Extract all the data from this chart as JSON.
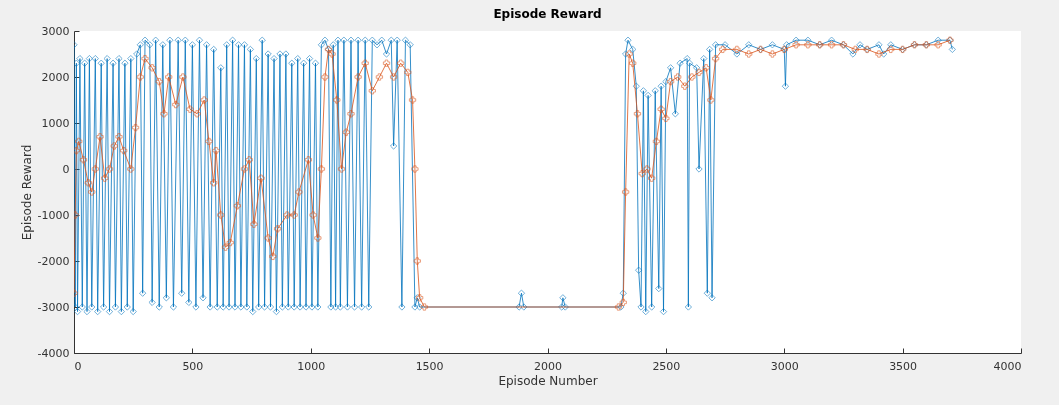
{
  "chart_data": {
    "type": "line",
    "title": "Episode Reward",
    "xlabel": "Episode Number",
    "ylabel": "Episode Reward",
    "xlim": [
      0,
      4000
    ],
    "xticks": [
      0,
      500,
      1000,
      1500,
      2000,
      2500,
      3000,
      3500,
      4000
    ],
    "ylim": [
      -4000,
      3000
    ],
    "yticks": [
      -4000,
      -3000,
      -2000,
      -1000,
      0,
      1000,
      2000,
      3000
    ],
    "grid": false,
    "series": [
      {
        "color": "#0072bd",
        "marker": "diamond",
        "x": [
          0,
          5,
          10,
          15,
          25,
          35,
          45,
          55,
          65,
          75,
          90,
          100,
          115,
          125,
          140,
          150,
          165,
          175,
          190,
          200,
          215,
          225,
          240,
          250,
          265,
          280,
          290,
          300,
          320,
          330,
          345,
          360,
          375,
          390,
          405,
          420,
          440,
          455,
          470,
          485,
          500,
          515,
          530,
          545,
          560,
          575,
          590,
          605,
          620,
          630,
          645,
          655,
          670,
          680,
          695,
          705,
          720,
          730,
          745,
          755,
          770,
          780,
          795,
          805,
          820,
          830,
          845,
          855,
          870,
          880,
          895,
          905,
          920,
          930,
          945,
          955,
          970,
          980,
          995,
          1005,
          1020,
          1030,
          1045,
          1060,
          1075,
          1085,
          1095,
          1105,
          1115,
          1125,
          1140,
          1155,
          1170,
          1185,
          1200,
          1215,
          1230,
          1245,
          1260,
          1280,
          1300,
          1320,
          1340,
          1350,
          1365,
          1385,
          1400,
          1420,
          1440,
          1450,
          1460,
          1880,
          1890,
          1900,
          2060,
          2065,
          2075,
          2310,
          2320,
          2330,
          2340,
          2360,
          2375,
          2385,
          2395,
          2405,
          2415,
          2425,
          2440,
          2455,
          2470,
          2480,
          2490,
          2500,
          2520,
          2540,
          2560,
          2590,
          2595,
          2600,
          2630,
          2640,
          2660,
          2675,
          2685,
          2695,
          2710,
          2750,
          2800,
          2850,
          2900,
          2950,
          3000,
          3005,
          3010,
          3050,
          3100,
          3150,
          3200,
          3250,
          3290,
          3320,
          3350,
          3400,
          3420,
          3450,
          3500,
          3550,
          3600,
          3650,
          3700,
          3710
        ],
        "values": [
          2700,
          -3000,
          2300,
          -3100,
          2400,
          -3000,
          2300,
          -3100,
          2400,
          -3000,
          2400,
          -3100,
          2300,
          -3000,
          2400,
          -3100,
          2300,
          -3000,
          2400,
          -3100,
          2300,
          -3000,
          2400,
          -3100,
          2500,
          2700,
          -2700,
          2800,
          2700,
          -2900,
          2800,
          -3000,
          2700,
          -2800,
          2800,
          -3000,
          2800,
          -2700,
          2800,
          -2900,
          2700,
          -3000,
          2800,
          -2800,
          2700,
          -3000,
          2600,
          -3000,
          2200,
          -3000,
          2700,
          -3000,
          2800,
          -3000,
          2700,
          -3000,
          2700,
          -3000,
          2600,
          -3100,
          2400,
          -3000,
          2800,
          -3000,
          2500,
          -3000,
          2400,
          -3100,
          2500,
          -3000,
          2500,
          -3000,
          2300,
          -3000,
          2400,
          -3000,
          2300,
          -3000,
          2400,
          -3000,
          2300,
          -3000,
          2700,
          2800,
          2600,
          -3000,
          2700,
          -3000,
          2800,
          -3000,
          2800,
          -3000,
          2800,
          -3000,
          2800,
          -3000,
          2800,
          -3000,
          2800,
          2700,
          2800,
          2500,
          2800,
          500,
          2800,
          -3000,
          2800,
          2700,
          -3000,
          -2800,
          -3000,
          -3000,
          -2700,
          -3000,
          -3000,
          -2800,
          -3000,
          -3000,
          -2700,
          2500,
          2800,
          2600,
          1800,
          -2200,
          -3000,
          1700,
          -3100,
          1600,
          -3000,
          1700,
          -2600,
          1800,
          -3100,
          1900,
          2200,
          1200,
          2300,
          2400,
          -3000,
          2300,
          2200,
          0,
          2400,
          -2700,
          2600,
          -2800,
          2700,
          2700,
          2500,
          2700,
          2600,
          2700,
          2600,
          1800,
          2700,
          2800,
          2800,
          2700,
          2800,
          2700,
          2500,
          2700,
          2600,
          2700,
          2500,
          2700,
          2600,
          2700,
          2700,
          2800,
          2800,
          2600
        ]
      },
      {
        "color": "#d95319",
        "marker": "cross",
        "x": [
          0,
          5,
          10,
          20,
          40,
          60,
          75,
          90,
          110,
          130,
          150,
          170,
          190,
          210,
          240,
          260,
          280,
          300,
          330,
          360,
          380,
          400,
          430,
          460,
          490,
          520,
          550,
          570,
          590,
          600,
          620,
          640,
          660,
          690,
          720,
          740,
          760,
          790,
          820,
          840,
          860,
          900,
          930,
          950,
          990,
          1010,
          1030,
          1045,
          1060,
          1075,
          1090,
          1110,
          1130,
          1150,
          1170,
          1200,
          1230,
          1260,
          1290,
          1320,
          1350,
          1380,
          1410,
          1430,
          1440,
          1450,
          1460,
          1480,
          2300,
          2320,
          2330,
          2345,
          2360,
          2380,
          2400,
          2420,
          2440,
          2460,
          2480,
          2500,
          2520,
          2550,
          2580,
          2610,
          2640,
          2670,
          2690,
          2710,
          2740,
          2800,
          2850,
          2900,
          2950,
          3000,
          3050,
          3100,
          3150,
          3200,
          3250,
          3300,
          3350,
          3400,
          3450,
          3500,
          3550,
          3600,
          3650,
          3700
        ],
        "values": [
          -2700,
          -1000,
          400,
          600,
          200,
          -300,
          -500,
          0,
          700,
          -200,
          0,
          500,
          700,
          400,
          0,
          900,
          2000,
          2400,
          2200,
          1900,
          1200,
          2000,
          1400,
          2000,
          1300,
          1200,
          1500,
          600,
          -300,
          400,
          -1000,
          -1700,
          -1600,
          -800,
          0,
          200,
          -1200,
          -200,
          -1500,
          -1900,
          -1300,
          -1000,
          -1000,
          -500,
          200,
          -1000,
          -1500,
          0,
          2000,
          2600,
          2500,
          1500,
          0,
          800,
          1200,
          2000,
          2300,
          1700,
          2000,
          2300,
          2000,
          2300,
          2100,
          1500,
          0,
          -2000,
          -2800,
          -3000,
          -3000,
          -2900,
          -500,
          2500,
          2300,
          1200,
          -100,
          0,
          -200,
          600,
          1300,
          1100,
          1900,
          2000,
          1800,
          2000,
          2100,
          2200,
          1500,
          2400,
          2600,
          2600,
          2500,
          2600,
          2500,
          2600,
          2700,
          2700,
          2700,
          2700,
          2700,
          2600,
          2600,
          2500,
          2600,
          2600,
          2700,
          2700,
          2700,
          2800
        ]
      }
    ]
  }
}
